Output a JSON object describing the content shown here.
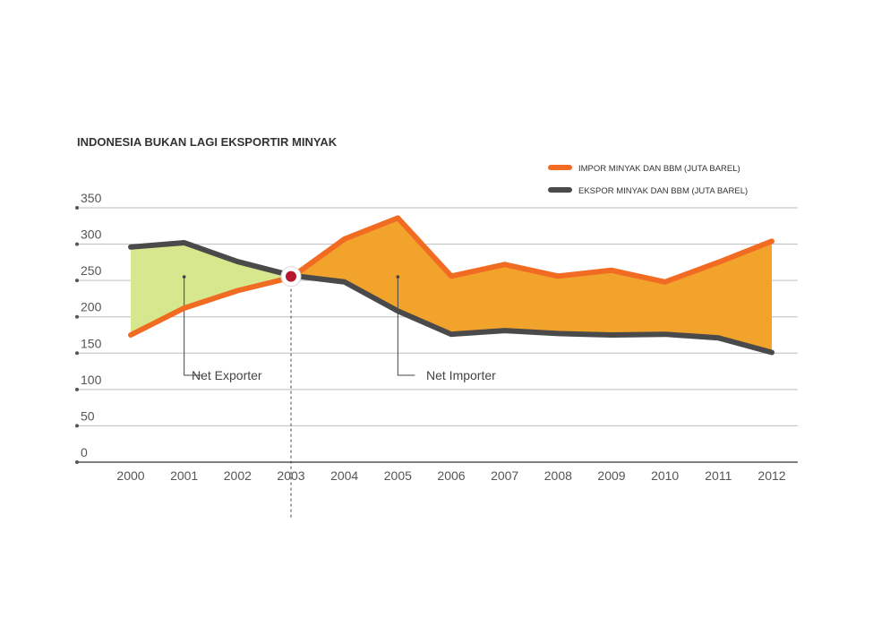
{
  "chart_data": {
    "type": "area",
    "title": "INDONESIA BUKAN LAGI EKSPORTIR MINYAK",
    "xlabel": "",
    "ylabel": "",
    "categories": [
      "2000",
      "2001",
      "2002",
      "2003",
      "2004",
      "2005",
      "2006",
      "2007",
      "2008",
      "2009",
      "2010",
      "2011",
      "2012"
    ],
    "ylim": [
      0,
      350
    ],
    "yticks": [
      "0",
      "50",
      "100",
      "150",
      "200",
      "250",
      "300",
      "350"
    ],
    "grid": true,
    "legend_position": "top-right",
    "series": [
      {
        "name": "IMPOR MINYAK DAN BBM (JUTA BAREL)",
        "color": "#f26b22",
        "values": [
          175,
          212,
          236,
          254,
          307,
          336,
          256,
          272,
          256,
          264,
          248,
          275,
          304
        ]
      },
      {
        "name": "EKSPOR MINYAK DAN BBM (JUTA BAREL)",
        "color": "#4a4a4a",
        "values": [
          296,
          302,
          276,
          257,
          248,
          208,
          176,
          181,
          177,
          175,
          176,
          171,
          151
        ]
      }
    ],
    "fill_colors": {
      "net_exporter": "#d6e78e",
      "net_importer": "#f2a32b"
    },
    "crossover_marker_color": "#b5172e",
    "annotations": [
      {
        "label": "Net Exporter",
        "x": "2001",
        "y": 255
      },
      {
        "label": "Net Importer",
        "x": "2005",
        "y": 255
      }
    ],
    "crossover_year": "2003"
  }
}
